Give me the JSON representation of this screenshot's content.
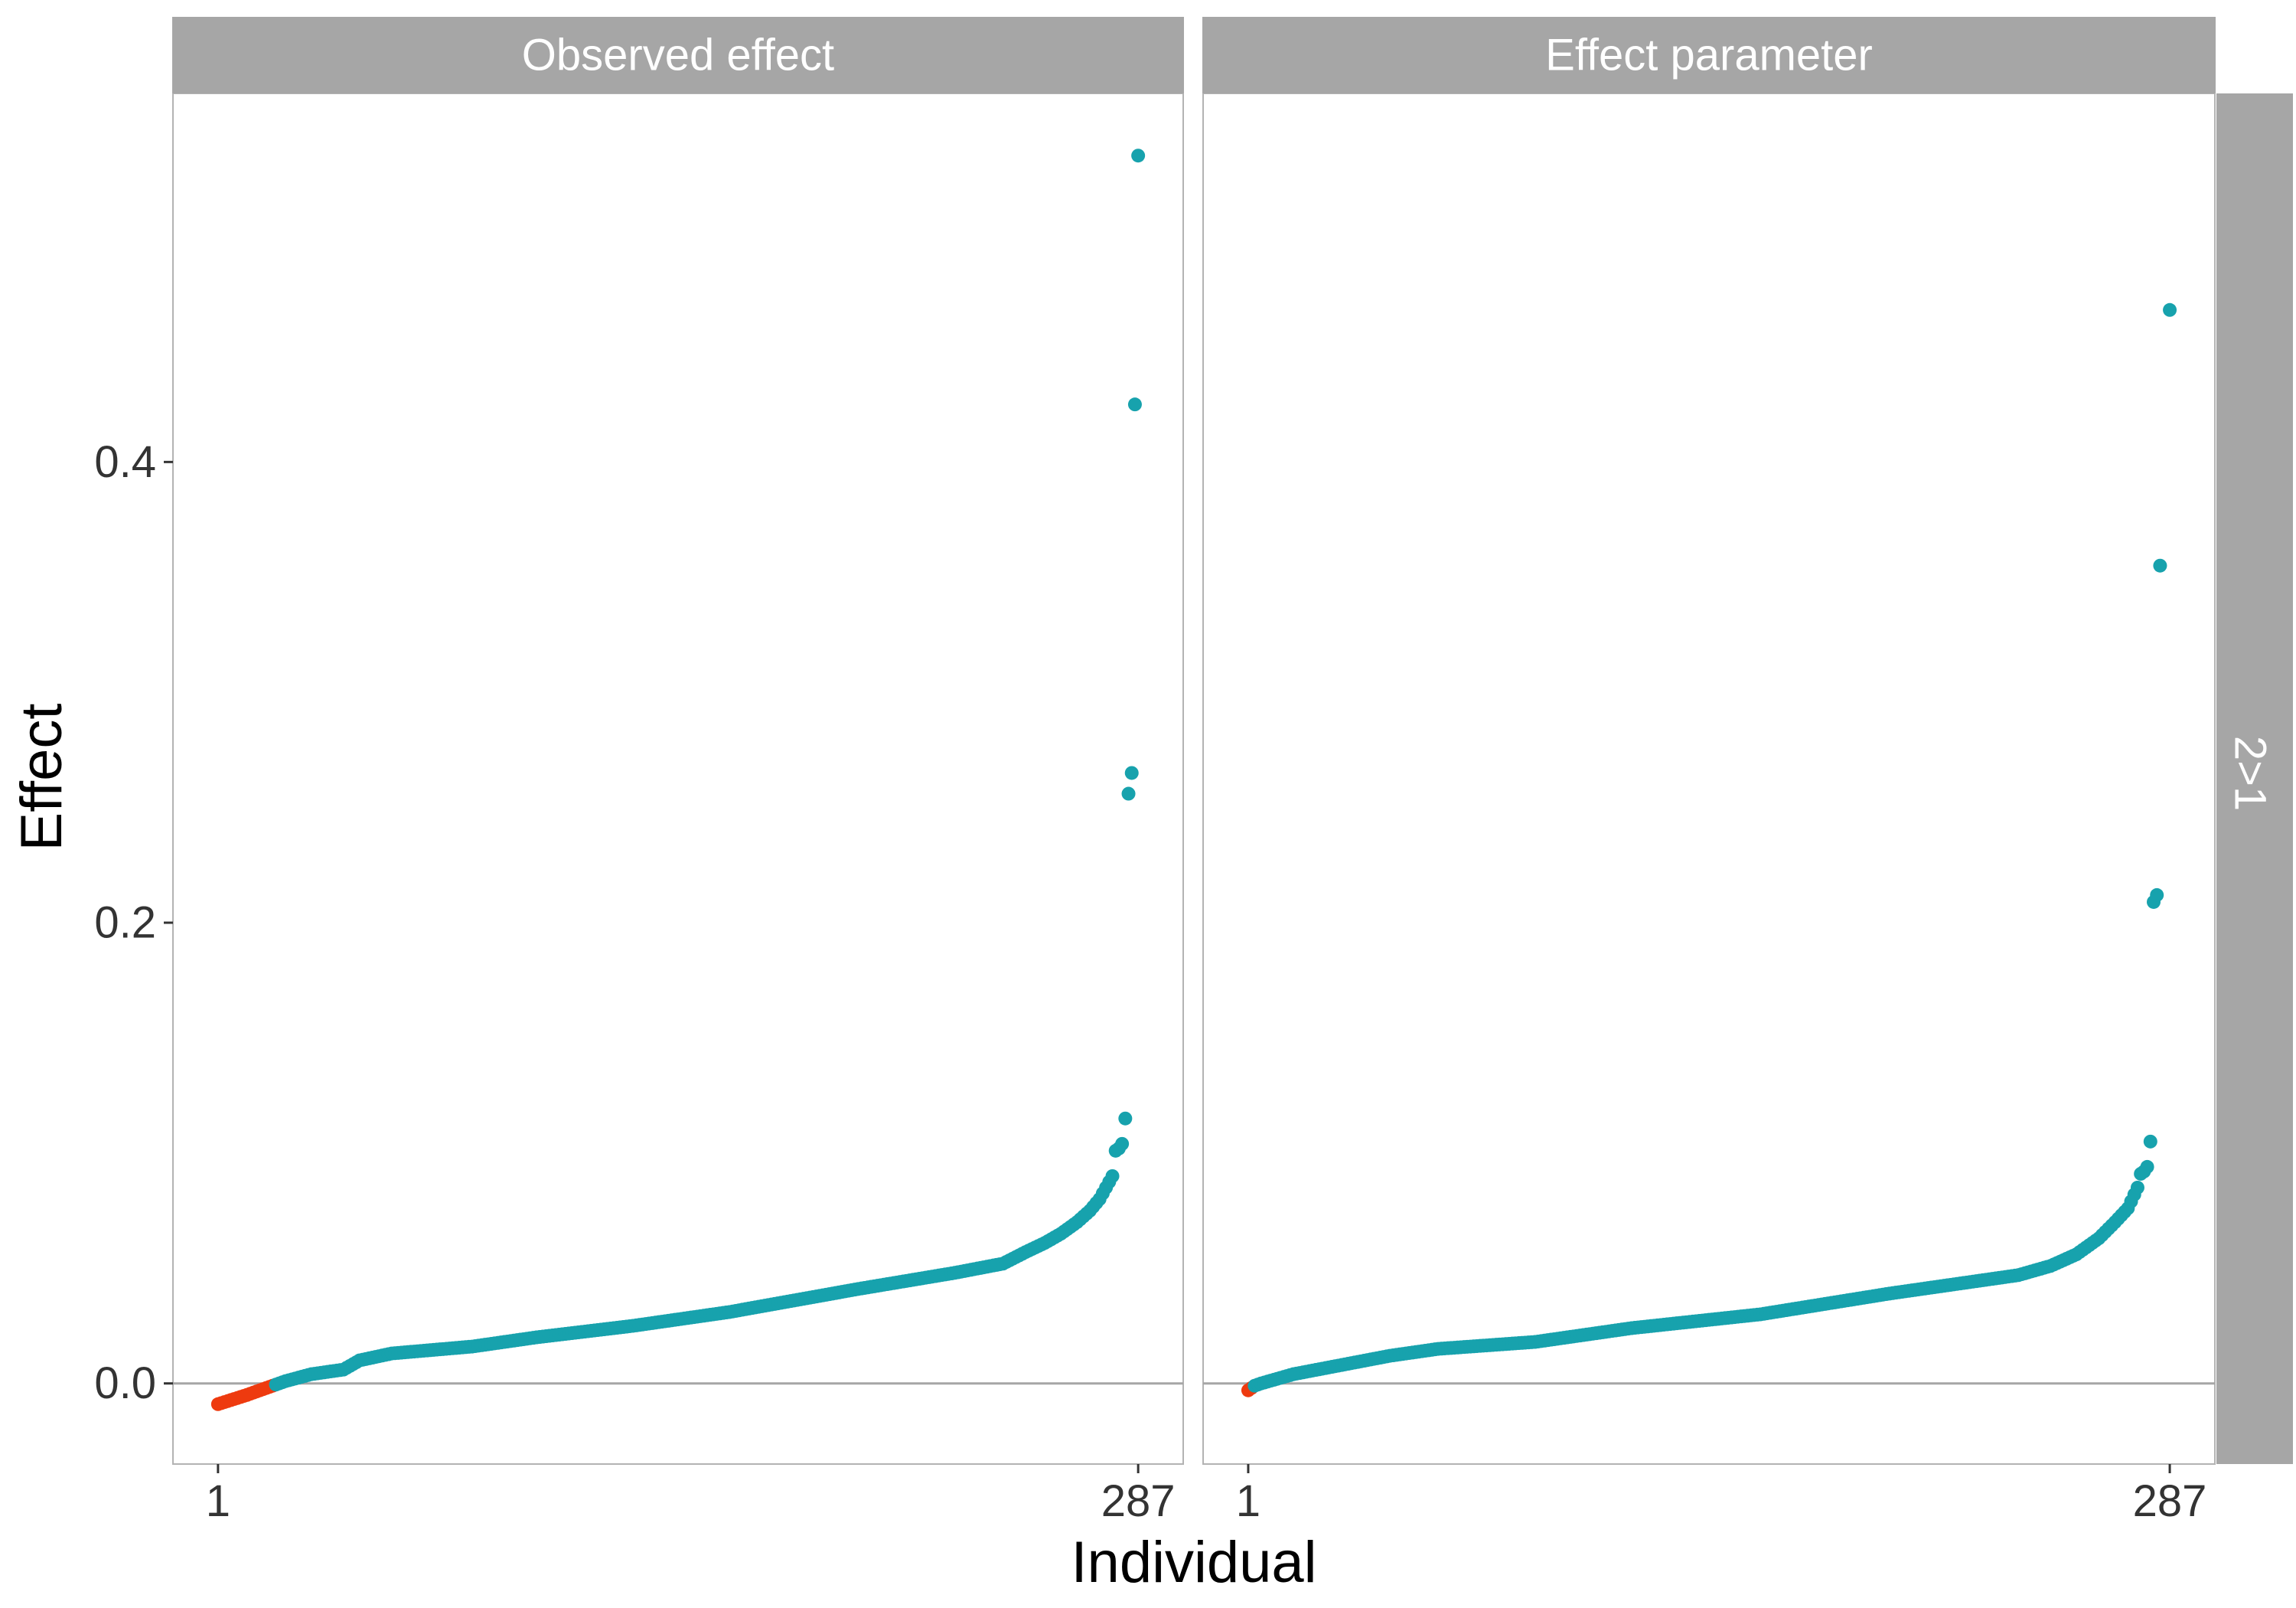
{
  "chart_data": {
    "type": "scatter",
    "xlabel": "Individual",
    "ylabel": "Effect",
    "row_facet_label": "2>1",
    "n": 287,
    "x_ticks": [
      1,
      287
    ],
    "x_tick_labels": [
      "1",
      "287"
    ],
    "y_ticks": [
      0.0,
      0.2,
      0.4
    ],
    "y_tick_labels": [
      "0.0",
      "0.2",
      "0.4"
    ],
    "ylim": [
      -0.035,
      0.56
    ],
    "xlim": [
      -13,
      301
    ],
    "reference_line_y": 0,
    "colors": {
      "positive": "#17a2ad",
      "negative": "#ee3a0f",
      "strip": "#a6a6a6",
      "panel_border": "#b3b3b3",
      "zero_line": "#a6a6a6"
    },
    "panels": [
      {
        "title": "Observed effect",
        "negative_count": 18,
        "curve": [
          [
            1,
            -0.009
          ],
          [
            10,
            -0.005
          ],
          [
            18,
            -0.001
          ],
          [
            22,
            0.001
          ],
          [
            30,
            0.004
          ],
          [
            40,
            0.006
          ],
          [
            45,
            0.01
          ],
          [
            55,
            0.013
          ],
          [
            80,
            0.016
          ],
          [
            100,
            0.02
          ],
          [
            130,
            0.025
          ],
          [
            160,
            0.031
          ],
          [
            200,
            0.041
          ],
          [
            230,
            0.048
          ],
          [
            245,
            0.052
          ],
          [
            252,
            0.057
          ],
          [
            258,
            0.061
          ],
          [
            263,
            0.065
          ],
          [
            268,
            0.07
          ],
          [
            272,
            0.075
          ],
          [
            275,
            0.08
          ],
          [
            277,
            0.085
          ],
          [
            279,
            0.09
          ]
        ],
        "outliers": [
          [
            280,
            0.101
          ],
          [
            281,
            0.102
          ],
          [
            282,
            0.104
          ],
          [
            283,
            0.115
          ],
          [
            284,
            0.256
          ],
          [
            285,
            0.265
          ],
          [
            286,
            0.425
          ],
          [
            287,
            0.533
          ]
        ]
      },
      {
        "title": "Effect parameter",
        "negative_count": 2,
        "curve": [
          [
            1,
            -0.003
          ],
          [
            3,
            -0.001
          ],
          [
            5,
            0.0
          ],
          [
            15,
            0.004
          ],
          [
            30,
            0.008
          ],
          [
            45,
            0.012
          ],
          [
            60,
            0.015
          ],
          [
            90,
            0.018
          ],
          [
            120,
            0.024
          ],
          [
            160,
            0.03
          ],
          [
            200,
            0.039
          ],
          [
            240,
            0.047
          ],
          [
            250,
            0.051
          ],
          [
            258,
            0.056
          ],
          [
            265,
            0.063
          ],
          [
            270,
            0.07
          ],
          [
            274,
            0.076
          ],
          [
            277,
            0.085
          ]
        ],
        "outliers": [
          [
            278,
            0.091
          ],
          [
            279,
            0.092
          ],
          [
            280,
            0.094
          ],
          [
            281,
            0.105
          ],
          [
            282,
            0.209
          ],
          [
            283,
            0.212
          ],
          [
            284,
            0.355
          ],
          [
            287,
            0.466
          ]
        ]
      }
    ]
  }
}
